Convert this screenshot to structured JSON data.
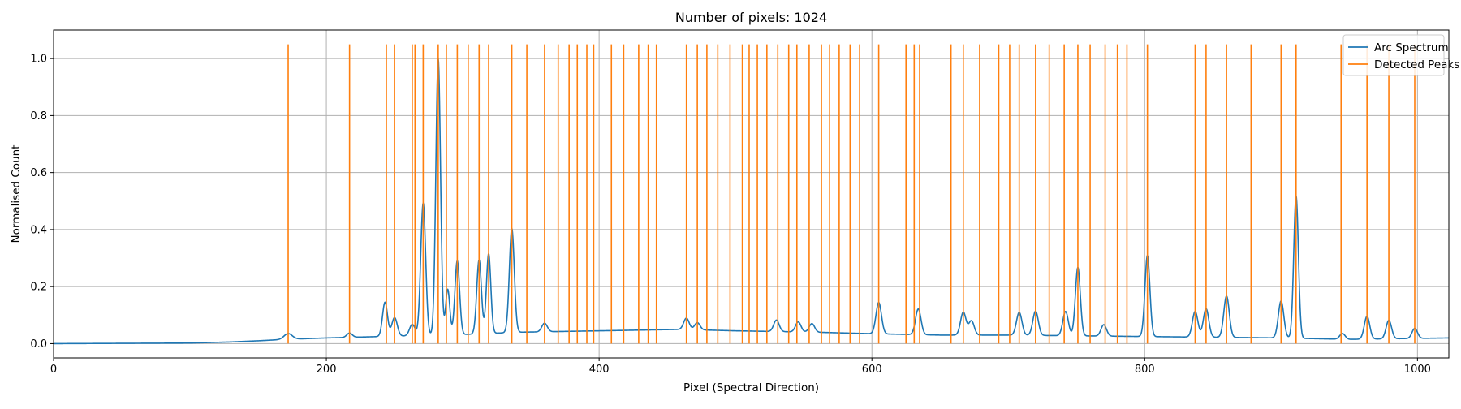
{
  "chart_data": {
    "type": "line",
    "title": "Number of pixels: 1024",
    "xlabel": "Pixel (Spectral Direction)",
    "ylabel": "Normalised Count",
    "xlim": [
      0,
      1023
    ],
    "ylim": [
      -0.05,
      1.1
    ],
    "grid": true,
    "legend_position": "top-right",
    "x_ticks": [
      0,
      200,
      400,
      600,
      800,
      1000
    ],
    "x_tick_labels": [
      "0",
      "200",
      "400",
      "600",
      "800",
      "1000"
    ],
    "y_ticks": [
      0.0,
      0.2,
      0.4,
      0.6,
      0.8,
      1.0
    ],
    "y_tick_labels": [
      "0.0",
      "0.2",
      "0.4",
      "0.6",
      "0.8",
      "1.0"
    ],
    "series": [
      {
        "name": "Arc Spectrum",
        "color": "#1f77b4",
        "kind": "spectrum",
        "baseline": [
          [
            0,
            0
          ],
          [
            100,
            0.002
          ],
          [
            130,
            0.006
          ],
          [
            150,
            0.01
          ],
          [
            170,
            0.015
          ],
          [
            200,
            0.02
          ],
          [
            240,
            0.025
          ],
          [
            300,
            0.032
          ],
          [
            340,
            0.04
          ],
          [
            400,
            0.045
          ],
          [
            460,
            0.05
          ],
          [
            500,
            0.045
          ],
          [
            560,
            0.04
          ],
          [
            600,
            0.035
          ],
          [
            650,
            0.03
          ],
          [
            700,
            0.03
          ],
          [
            800,
            0.025
          ],
          [
            900,
            0.02
          ],
          [
            950,
            0.015
          ],
          [
            1023,
            0.02
          ]
        ],
        "peaks": [
          {
            "x": 172,
            "height": 0.02,
            "width": 3
          },
          {
            "x": 217,
            "height": 0.015,
            "width": 2
          },
          {
            "x": 243,
            "height": 0.12,
            "width": 1.8
          },
          {
            "x": 250,
            "height": 0.065,
            "width": 2
          },
          {
            "x": 263,
            "height": 0.04,
            "width": 2
          },
          {
            "x": 271,
            "height": 0.465,
            "width": 1.8
          },
          {
            "x": 282,
            "height": 0.97,
            "width": 1.7
          },
          {
            "x": 289,
            "height": 0.16,
            "width": 1.5
          },
          {
            "x": 296,
            "height": 0.26,
            "width": 1.7
          },
          {
            "x": 312,
            "height": 0.26,
            "width": 1.7
          },
          {
            "x": 319,
            "height": 0.28,
            "width": 1.6
          },
          {
            "x": 336,
            "height": 0.365,
            "width": 1.8
          },
          {
            "x": 360,
            "height": 0.03,
            "width": 2
          },
          {
            "x": 464,
            "height": 0.04,
            "width": 2
          },
          {
            "x": 472,
            "height": 0.025,
            "width": 2
          },
          {
            "x": 530,
            "height": 0.04,
            "width": 2
          },
          {
            "x": 546,
            "height": 0.035,
            "width": 2
          },
          {
            "x": 556,
            "height": 0.03,
            "width": 2
          },
          {
            "x": 605,
            "height": 0.11,
            "width": 2
          },
          {
            "x": 634,
            "height": 0.09,
            "width": 2
          },
          {
            "x": 667,
            "height": 0.08,
            "width": 2
          },
          {
            "x": 673,
            "height": 0.05,
            "width": 2
          },
          {
            "x": 708,
            "height": 0.08,
            "width": 2
          },
          {
            "x": 720,
            "height": 0.085,
            "width": 2
          },
          {
            "x": 742,
            "height": 0.085,
            "width": 2
          },
          {
            "x": 751,
            "height": 0.24,
            "width": 1.8
          },
          {
            "x": 770,
            "height": 0.04,
            "width": 2
          },
          {
            "x": 802,
            "height": 0.285,
            "width": 1.8
          },
          {
            "x": 837,
            "height": 0.09,
            "width": 2
          },
          {
            "x": 845,
            "height": 0.1,
            "width": 2
          },
          {
            "x": 860,
            "height": 0.145,
            "width": 2
          },
          {
            "x": 900,
            "height": 0.13,
            "width": 2
          },
          {
            "x": 911,
            "height": 0.5,
            "width": 1.7
          },
          {
            "x": 945,
            "height": 0.02,
            "width": 2
          },
          {
            "x": 963,
            "height": 0.08,
            "width": 2
          },
          {
            "x": 979,
            "height": 0.065,
            "width": 2
          },
          {
            "x": 998,
            "height": 0.035,
            "width": 2
          }
        ]
      },
      {
        "name": "Detected Peaks",
        "color": "#ff7f0e",
        "kind": "vlines",
        "ymin": 0,
        "ymax": 1.05,
        "x": [
          172,
          217,
          244,
          250,
          263,
          265,
          271,
          282,
          288,
          296,
          304,
          312,
          319,
          336,
          347,
          360,
          370,
          378,
          384,
          391,
          396,
          409,
          418,
          429,
          436,
          442,
          464,
          472,
          479,
          487,
          496,
          505,
          510,
          516,
          523,
          531,
          539,
          545,
          554,
          563,
          569,
          576,
          584,
          591,
          605,
          625,
          631,
          635,
          658,
          667,
          679,
          693,
          701,
          708,
          720,
          730,
          741,
          751,
          760,
          771,
          780,
          787,
          802,
          837,
          845,
          860,
          878,
          900,
          911,
          944,
          963,
          979,
          998
        ]
      }
    ]
  }
}
